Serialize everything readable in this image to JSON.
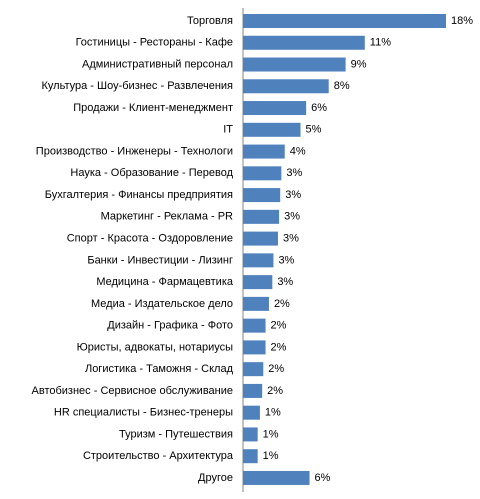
{
  "chart_data": {
    "type": "bar",
    "orientation": "horizontal",
    "color": "#4f81bd",
    "categories": [
      "Торговля",
      "Гостиницы - Рестораны - Кафе",
      "Административный персонал",
      "Культура - Шоу-бизнес - Развлечения",
      "Продажи - Клиент-менеджмент",
      "IT",
      "Производство - Инженеры  - Технологи",
      "Наука - Образование - Перевод",
      "Бухгалтерия - Финансы предприятия",
      "Маркетинг - Реклама - PR",
      "Спорт - Красота - Оздоровление",
      "Банки - Инвестиции  - Лизинг",
      "Медицина  - Фармацевтика",
      "Медиа - Издательское дело",
      "Дизайн - Графика - Фото",
      "Юристы, адвокаты, нотариусы",
      "Логистика - Таможня - Склад",
      "Автобизнес - Сервисное обслуживание",
      "HR специалисты - Бизнес-тренеры",
      "Туризм - Путешествия",
      "Строительство  - Архитектура",
      "Другое"
    ],
    "values": [
      18,
      10.8,
      9.1,
      7.6,
      5.6,
      5.1,
      3.7,
      3.4,
      3.3,
      3.2,
      3.1,
      2.7,
      2.6,
      2.3,
      2.0,
      2.0,
      1.8,
      1.7,
      1.5,
      1.3,
      1.3,
      5.9
    ],
    "value_labels": [
      "18%",
      "11%",
      "9%",
      "8%",
      "6%",
      "5%",
      "4%",
      "3%",
      "3%",
      "3%",
      "3%",
      "3%",
      "3%",
      "2%",
      "2%",
      "2%",
      "2%",
      "2%",
      "1%",
      "1%",
      "1%",
      "6%"
    ],
    "xlim": [
      0,
      18
    ]
  }
}
